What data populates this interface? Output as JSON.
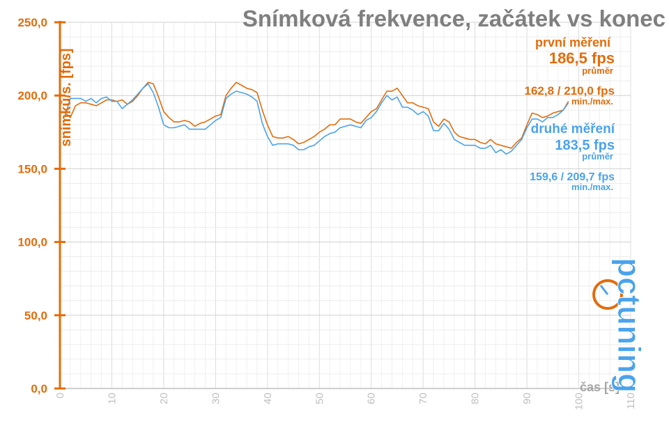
{
  "chart_data": {
    "type": "line",
    "title": "Snímková frekvence, začátek vs konec",
    "ylabel": "snímků/s. [fps]",
    "xlabel": "čas [s]",
    "xlim": [
      0,
      110
    ],
    "ylim": [
      0,
      250
    ],
    "grid": true,
    "x_ticks": [
      "0",
      "10",
      "20",
      "30",
      "40",
      "50",
      "60",
      "70",
      "80",
      "90",
      "100",
      "110"
    ],
    "y_ticks": [
      "0,0",
      "50,0",
      "100,0",
      "150,0",
      "200,0",
      "250,0"
    ],
    "colors": {
      "series1": "#e36c0a",
      "series2": "#4aa3ec",
      "axis": "#e36c0a",
      "grid": "#e6e6e6"
    },
    "series": [
      {
        "name": "první měření",
        "x": [
          1,
          2,
          3,
          4,
          5,
          6,
          7,
          8,
          9,
          10,
          11,
          12,
          13,
          14,
          15,
          16,
          17,
          18,
          19,
          20,
          21,
          22,
          23,
          24,
          25,
          26,
          27,
          28,
          29,
          30,
          31,
          32,
          33,
          34,
          35,
          36,
          37,
          38,
          39,
          40,
          41,
          42,
          43,
          44,
          45,
          46,
          47,
          48,
          49,
          50,
          51,
          52,
          53,
          54,
          55,
          56,
          57,
          58,
          59,
          60,
          61,
          62,
          63,
          64,
          65,
          66,
          67,
          68,
          69,
          70,
          71,
          72,
          73,
          74,
          75,
          76,
          77,
          78,
          79,
          80,
          81,
          82,
          83,
          84,
          85,
          86,
          87,
          88,
          89,
          90,
          91,
          92,
          93,
          94,
          95,
          96,
          97,
          98
        ],
        "values": [
          188,
          185,
          193,
          195,
          195,
          194,
          193,
          195,
          197,
          197,
          196,
          197,
          194,
          196,
          200,
          205,
          209,
          208,
          199,
          189,
          185,
          182,
          182,
          183,
          182,
          179,
          181,
          182,
          184,
          186,
          187,
          200,
          205,
          209,
          207,
          205,
          204,
          202,
          190,
          180,
          172,
          171,
          171,
          172,
          170,
          167,
          168,
          170,
          172,
          175,
          177,
          180,
          180,
          184,
          184,
          184,
          182,
          181,
          185,
          189,
          191,
          197,
          203,
          203,
          205,
          200,
          195,
          195,
          193,
          192,
          191,
          182,
          179,
          184,
          182,
          175,
          172,
          171,
          170,
          170,
          168,
          167,
          170,
          167,
          166,
          165,
          164,
          168,
          171,
          180,
          188,
          187,
          185,
          186,
          188,
          189,
          190,
          196
        ],
        "summary": {
          "label": "první měření",
          "avg": "186,5 fps",
          "avg_label": "průměr",
          "minmax": "162,8 / 210,0 fps",
          "minmax_label": "min./max."
        }
      },
      {
        "name": "druhé měření",
        "x": [
          1,
          2,
          3,
          4,
          5,
          6,
          7,
          8,
          9,
          10,
          11,
          12,
          13,
          14,
          15,
          16,
          17,
          18,
          19,
          20,
          21,
          22,
          23,
          24,
          25,
          26,
          27,
          28,
          29,
          30,
          31,
          32,
          33,
          34,
          35,
          36,
          37,
          38,
          39,
          40,
          41,
          42,
          43,
          44,
          45,
          46,
          47,
          48,
          49,
          50,
          51,
          52,
          53,
          54,
          55,
          56,
          57,
          58,
          59,
          60,
          61,
          62,
          63,
          64,
          65,
          66,
          67,
          68,
          69,
          70,
          71,
          72,
          73,
          74,
          75,
          76,
          77,
          78,
          79,
          80,
          81,
          82,
          83,
          84,
          85,
          86,
          87,
          88,
          89,
          90,
          91,
          92,
          93,
          94,
          95,
          96,
          97,
          98
        ],
        "values": [
          186,
          198,
          198,
          198,
          196,
          198,
          195,
          198,
          199,
          196,
          196,
          191,
          194,
          197,
          201,
          205,
          208,
          202,
          192,
          180,
          178,
          178,
          179,
          180,
          177,
          177,
          177,
          177,
          180,
          183,
          185,
          198,
          201,
          203,
          202,
          201,
          199,
          196,
          181,
          172,
          166,
          167,
          167,
          167,
          166,
          163,
          163,
          165,
          166,
          169,
          172,
          174,
          175,
          178,
          179,
          180,
          179,
          178,
          183,
          185,
          189,
          195,
          200,
          197,
          199,
          192,
          192,
          190,
          187,
          189,
          186,
          176,
          176,
          181,
          177,
          170,
          168,
          166,
          166,
          166,
          164,
          164,
          166,
          161,
          163,
          160,
          162,
          166,
          170,
          178,
          184,
          184,
          182,
          185,
          185,
          187,
          190,
          195
        ],
        "summary": {
          "label": "druhé měření",
          "avg": "183,5 fps",
          "avg_label": "průměr",
          "minmax": "159,6 / 209,7 fps",
          "minmax_label": "min./max."
        }
      }
    ]
  },
  "logo": {
    "text": "pctuning"
  }
}
